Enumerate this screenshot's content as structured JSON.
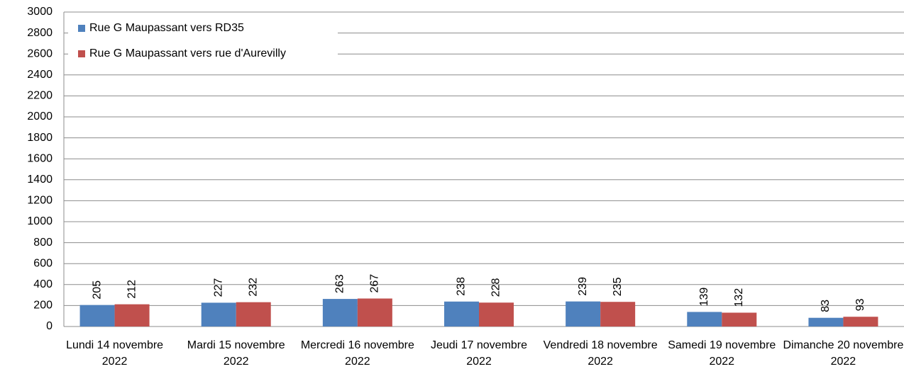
{
  "chart_data": {
    "type": "bar",
    "categories": [
      "Lundi 14 novembre 2022",
      "Mardi 15 novembre 2022",
      "Mercredi 16 novembre 2022",
      "Jeudi 17 novembre 2022",
      "Vendredi 18 novembre 2022",
      "Samedi 19 novembre 2022",
      "Dimanche 20 novembre 2022"
    ],
    "series": [
      {
        "name": "Rue G Maupassant vers RD35",
        "color": "#4f81bd",
        "values": [
          205,
          227,
          263,
          238,
          239,
          139,
          83
        ]
      },
      {
        "name": "Rue G Maupassant vers rue d'Aurevilly",
        "color": "#c0504d",
        "values": [
          212,
          232,
          267,
          228,
          235,
          132,
          93
        ]
      }
    ],
    "ylim": [
      0,
      3000
    ],
    "yticks": [
      0,
      200,
      400,
      600,
      800,
      1000,
      1200,
      1400,
      1600,
      1800,
      2000,
      2200,
      2400,
      2600,
      2800,
      3000
    ],
    "grid": true,
    "legend": "top-left"
  }
}
